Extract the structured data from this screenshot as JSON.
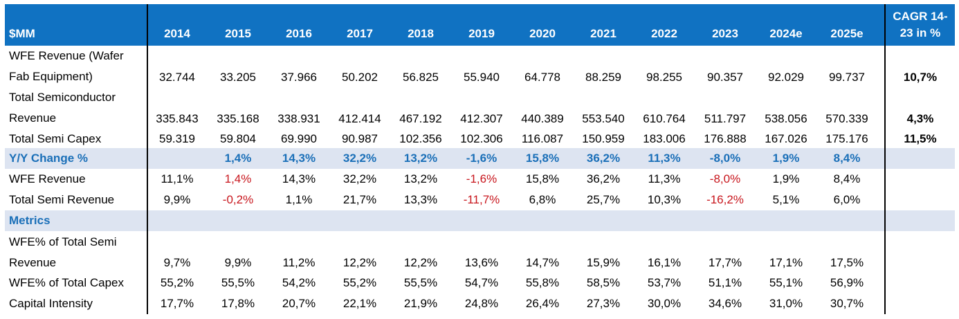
{
  "header": {
    "label": "$MM",
    "years": [
      "2014",
      "2015",
      "2016",
      "2017",
      "2018",
      "2019",
      "2020",
      "2021",
      "2022",
      "2023",
      "2024e",
      "2025e"
    ],
    "cagr_line1": "CAGR 14-",
    "cagr_line2": "23 in %"
  },
  "colors": {
    "header_bg": "#1072c2",
    "band_bg": "#dde4f1",
    "band_text": "#1a6fb8",
    "negative": "#c8161d"
  },
  "rows": [
    {
      "label_line1": "WFE Revenue (Wafer",
      "label_line2": "Fab Equipment)",
      "values": [
        "32.744",
        "33.205",
        "37.966",
        "50.202",
        "56.825",
        "55.940",
        "64.778",
        "88.259",
        "98.255",
        "90.357",
        "92.029",
        "99.737"
      ],
      "cagr": "10,7%"
    },
    {
      "label_line1": "Total Semiconductor",
      "label_line2": "Revenue",
      "values": [
        "335.843",
        "335.168",
        "338.931",
        "412.414",
        "467.192",
        "412.307",
        "440.389",
        "553.540",
        "610.764",
        "511.797",
        "538.056",
        "570.339"
      ],
      "cagr": "4,3%"
    },
    {
      "label": "Total Semi Capex",
      "values": [
        "59.319",
        "59.804",
        "69.990",
        "90.987",
        "102.356",
        "102.306",
        "116.087",
        "150.959",
        "183.006",
        "176.888",
        "167.026",
        "175.176"
      ],
      "cagr": "11,5%"
    },
    {
      "label": "Y/Y Change %",
      "values": [
        "",
        "1,4%",
        "14,3%",
        "32,2%",
        "13,2%",
        "-1,6%",
        "15,8%",
        "36,2%",
        "11,3%",
        "-8,0%",
        "1,9%",
        "8,4%"
      ]
    },
    {
      "label": "WFE Revenue",
      "values": [
        "11,1%",
        "1,4%",
        "14,3%",
        "32,2%",
        "13,2%",
        "-1,6%",
        "15,8%",
        "36,2%",
        "11,3%",
        "-8,0%",
        "1,9%",
        "8,4%"
      ]
    },
    {
      "label": "Total Semi Revenue",
      "values": [
        "9,9%",
        "-0,2%",
        "1,1%",
        "21,7%",
        "13,3%",
        "-11,7%",
        "6,8%",
        "25,7%",
        "10,3%",
        "-16,2%",
        "5,1%",
        "6,0%"
      ]
    },
    {
      "label": "Metrics"
    },
    {
      "label_line1": "WFE% of Total Semi",
      "label_line2": "Revenue",
      "values": [
        "9,7%",
        "9,9%",
        "11,2%",
        "12,2%",
        "12,2%",
        "13,6%",
        "14,7%",
        "15,9%",
        "16,1%",
        "17,7%",
        "17,1%",
        "17,5%"
      ]
    },
    {
      "label": "WFE% of Total Capex",
      "values": [
        "55,2%",
        "55,5%",
        "54,2%",
        "55,2%",
        "55,5%",
        "54,7%",
        "55,8%",
        "58,5%",
        "53,7%",
        "51,1%",
        "55,1%",
        "56,9%"
      ]
    },
    {
      "label": "Capital Intensity",
      "values": [
        "17,7%",
        "17,8%",
        "20,7%",
        "22,1%",
        "21,9%",
        "24,8%",
        "26,4%",
        "27,3%",
        "30,0%",
        "34,6%",
        "31,0%",
        "30,7%"
      ]
    }
  ]
}
